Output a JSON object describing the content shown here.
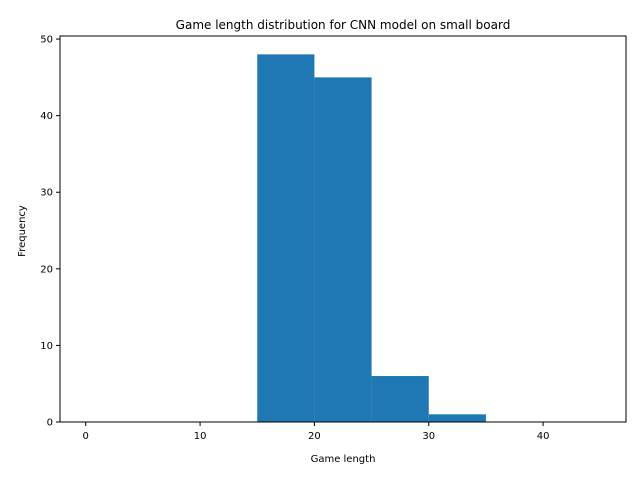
{
  "chart_data": {
    "type": "bar",
    "title": "Game length distribution for CNN model on small board",
    "xlabel": "Game length",
    "ylabel": "Frequency",
    "bins": [
      {
        "start": 0,
        "end": 5,
        "count": 0
      },
      {
        "start": 5,
        "end": 10,
        "count": 0
      },
      {
        "start": 10,
        "end": 15,
        "count": 0
      },
      {
        "start": 15,
        "end": 20,
        "count": 48
      },
      {
        "start": 20,
        "end": 25,
        "count": 45
      },
      {
        "start": 25,
        "end": 30,
        "count": 6
      },
      {
        "start": 30,
        "end": 35,
        "count": 1
      },
      {
        "start": 35,
        "end": 40,
        "count": 0
      },
      {
        "start": 40,
        "end": 45,
        "count": 0
      }
    ],
    "xlim": [
      -2.25,
      47.25
    ],
    "ylim": [
      0,
      50.4
    ],
    "xticks": [
      0,
      10,
      20,
      30,
      40
    ],
    "yticks": [
      0,
      10,
      20,
      30,
      40,
      50
    ],
    "grid": false,
    "bar_color": "#1f77b4"
  }
}
